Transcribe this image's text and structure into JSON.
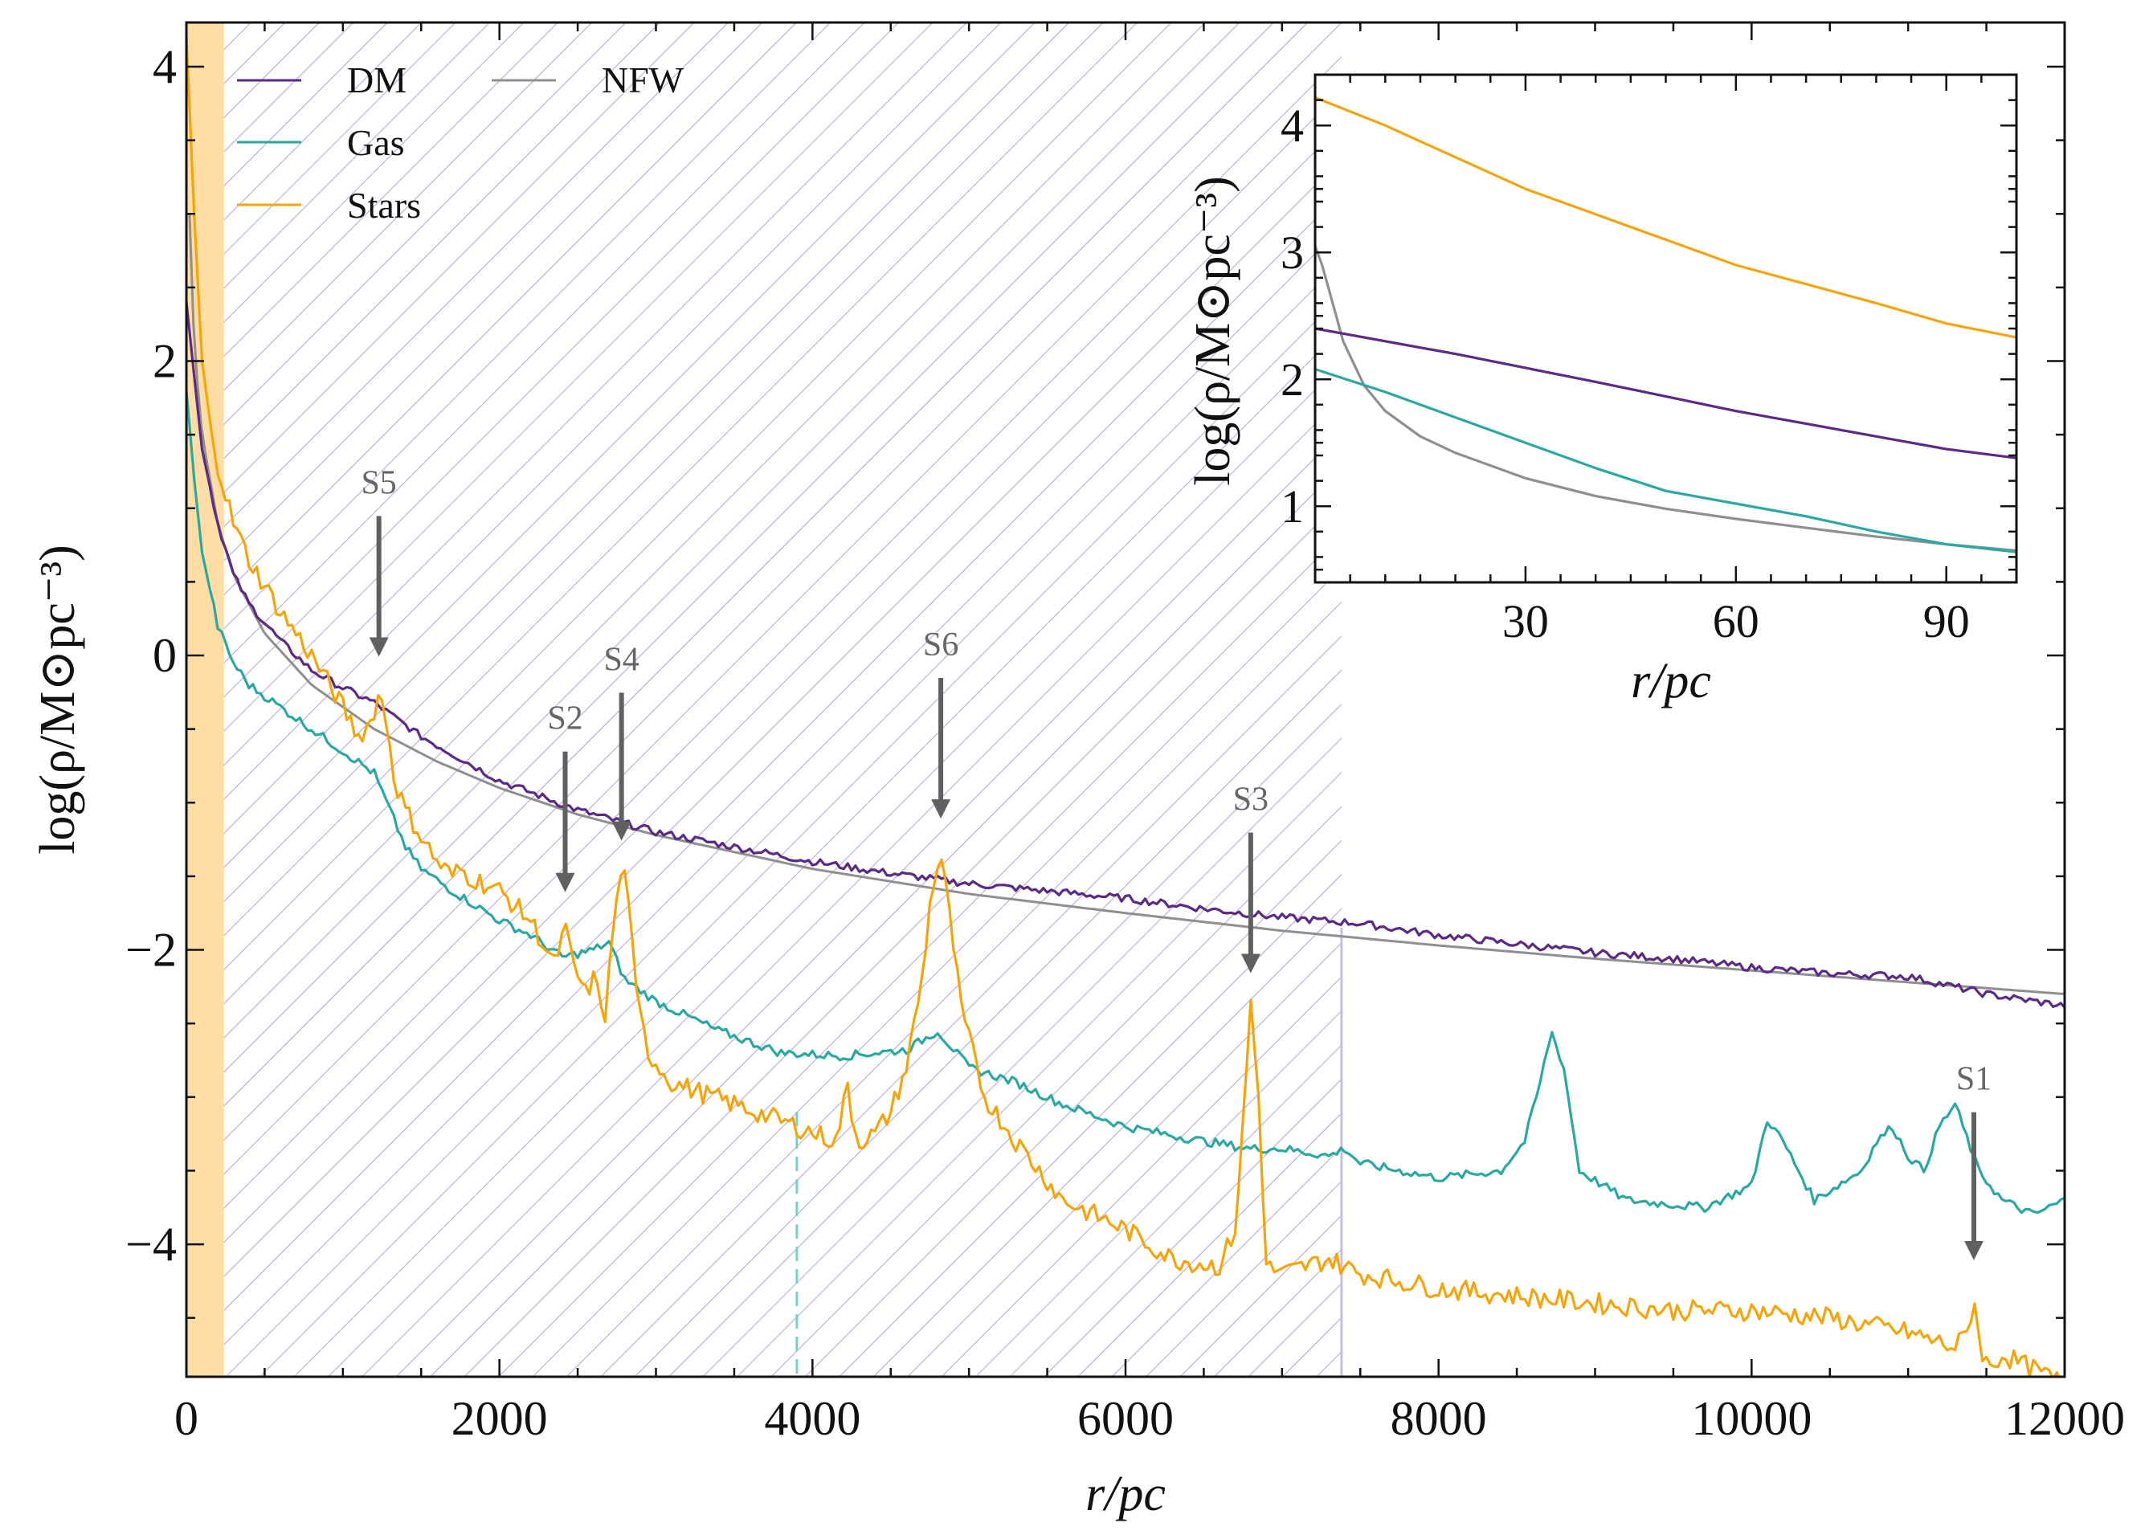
{
  "chart_data": {
    "type": "line",
    "title": "",
    "xlabel": "r/pc",
    "ylabel": "log(ρ/M⊙pc⁻³)",
    "xlim": [
      0,
      12000
    ],
    "ylim": [
      -4.9,
      4.3
    ],
    "xticks": [
      0,
      2000,
      4000,
      6000,
      8000,
      10000,
      12000
    ],
    "yticks": [
      4,
      2,
      0,
      -2,
      -4
    ],
    "ytick_labels": [
      "4",
      "2",
      "0",
      "−2",
      "−4"
    ],
    "colors": {
      "DM": "#5b2a86",
      "Gas": "#2aa9a2",
      "Stars": "#f5a50a",
      "NFW": "#8f8f8f",
      "arrow": "#606060"
    },
    "legend": {
      "placement": "top-left",
      "entries": [
        {
          "name": "DM",
          "color": "#5b2a86"
        },
        {
          "name": "Gas",
          "color": "#2aa9a2"
        },
        {
          "name": "Stars",
          "color": "#f5a50a"
        },
        {
          "name": "NFW",
          "color": "#8f8f8f"
        }
      ]
    },
    "shaded_regions": [
      {
        "x0": 0,
        "x1": 240,
        "style": "solid",
        "color": "#ffd99a"
      },
      {
        "x0": 240,
        "x1": 7380,
        "style": "hatched",
        "color": "#c9bde0"
      }
    ],
    "vertical_lines": [
      {
        "x": 3900,
        "color": "#7fcfc9",
        "style": "dashed"
      },
      {
        "x": 7380,
        "color": "#c9bde0",
        "style": "solid"
      }
    ],
    "series": [
      {
        "name": "DM",
        "x": [
          0,
          50,
          100,
          200,
          300,
          400,
          600,
          800,
          1000,
          1200,
          1500,
          2000,
          2500,
          3000,
          3500,
          4000,
          4500,
          5000,
          5500,
          6000,
          6500,
          7000,
          7500,
          8000,
          8500,
          9000,
          9500,
          10000,
          10500,
          11000,
          11500,
          12000
        ],
        "y": [
          2.4,
          1.9,
          1.4,
          0.9,
          0.55,
          0.35,
          0.1,
          -0.1,
          -0.22,
          -0.32,
          -0.55,
          -0.85,
          -1.05,
          -1.2,
          -1.3,
          -1.4,
          -1.48,
          -1.55,
          -1.6,
          -1.65,
          -1.72,
          -1.78,
          -1.82,
          -1.9,
          -1.96,
          -2.02,
          -2.06,
          -2.12,
          -2.16,
          -2.18,
          -2.3,
          -2.38
        ]
      },
      {
        "name": "Gas",
        "x": [
          0,
          50,
          100,
          200,
          300,
          400,
          600,
          800,
          1000,
          1200,
          1400,
          1500,
          1700,
          2000,
          2200,
          2400,
          2600,
          2700,
          2800,
          3000,
          3400,
          3800,
          4200,
          4600,
          4800,
          5000,
          5300,
          5600,
          6000,
          6500,
          6800,
          7000,
          7300,
          7400,
          7500,
          8000,
          8400,
          8550,
          8650,
          8720,
          8800,
          8900,
          9200,
          9700,
          10000,
          10100,
          10200,
          10400,
          10700,
          10800,
          10900,
          11000,
          11100,
          11200,
          11300,
          11450,
          11600,
          11800,
          12000
        ],
        "y": [
          1.8,
          1.2,
          0.7,
          0.2,
          -0.05,
          -0.2,
          -0.35,
          -0.5,
          -0.65,
          -0.8,
          -1.3,
          -1.45,
          -1.6,
          -1.8,
          -1.9,
          -2.05,
          -2.0,
          -1.95,
          -2.2,
          -2.35,
          -2.55,
          -2.7,
          -2.72,
          -2.68,
          -2.55,
          -2.8,
          -2.9,
          -3.05,
          -3.2,
          -3.3,
          -3.35,
          -3.35,
          -3.4,
          -3.35,
          -3.45,
          -3.55,
          -3.5,
          -3.3,
          -2.9,
          -2.55,
          -2.8,
          -3.5,
          -3.7,
          -3.75,
          -3.6,
          -3.15,
          -3.3,
          -3.7,
          -3.5,
          -3.3,
          -3.2,
          -3.4,
          -3.5,
          -3.2,
          -3.05,
          -3.5,
          -3.7,
          -3.8,
          -3.7
        ]
      },
      {
        "name": "Stars",
        "x": [
          0,
          50,
          100,
          150,
          200,
          300,
          400,
          600,
          800,
          1000,
          1100,
          1180,
          1230,
          1280,
          1330,
          1400,
          1600,
          1700,
          1750,
          1800,
          2000,
          2200,
          2350,
          2420,
          2470,
          2550,
          2600,
          2680,
          2720,
          2780,
          2820,
          2870,
          2950,
          3100,
          3500,
          3900,
          4150,
          4200,
          4230,
          4260,
          4300,
          4400,
          4500,
          4600,
          4700,
          4760,
          4820,
          4880,
          4950,
          5100,
          5300,
          5600,
          6000,
          6300,
          6600,
          6700,
          6750,
          6800,
          6850,
          6900,
          7000,
          7300,
          7500,
          8000,
          8500,
          9000,
          9500,
          10000,
          10500,
          11000,
          11300,
          11380,
          11420,
          11460,
          11520,
          11600,
          11800,
          12000
        ],
        "y": [
          4.2,
          3.0,
          2.0,
          1.6,
          1.3,
          0.9,
          0.65,
          0.3,
          0.0,
          -0.35,
          -0.55,
          -0.45,
          -0.25,
          -0.45,
          -0.85,
          -1.05,
          -1.4,
          -1.5,
          -1.45,
          -1.5,
          -1.6,
          -1.8,
          -2.1,
          -1.85,
          -2.1,
          -2.3,
          -2.2,
          -2.45,
          -1.9,
          -1.45,
          -1.55,
          -2.3,
          -2.7,
          -2.9,
          -3.05,
          -3.2,
          -3.3,
          -3.05,
          -2.9,
          -3.2,
          -3.3,
          -3.25,
          -3.1,
          -2.8,
          -2.2,
          -1.6,
          -1.35,
          -1.8,
          -2.4,
          -3.0,
          -3.3,
          -3.7,
          -3.9,
          -4.1,
          -4.15,
          -3.9,
          -3.2,
          -2.35,
          -3.0,
          -4.15,
          -4.2,
          -4.1,
          -4.2,
          -4.3,
          -4.35,
          -4.4,
          -4.45,
          -4.45,
          -4.5,
          -4.6,
          -4.7,
          -4.6,
          -4.35,
          -4.7,
          -4.85,
          -4.75,
          -4.85,
          -4.95
        ]
      },
      {
        "name": "NFW",
        "x": [
          20,
          50,
          100,
          200,
          300,
          500,
          800,
          1200,
          1600,
          2000,
          2500,
          3000,
          4000,
          5000,
          6000,
          7000,
          8000,
          9000,
          10000,
          11000,
          12000
        ],
        "y": [
          3.0,
          2.1,
          1.5,
          0.9,
          0.55,
          0.15,
          -0.2,
          -0.5,
          -0.72,
          -0.9,
          -1.08,
          -1.22,
          -1.45,
          -1.62,
          -1.75,
          -1.87,
          -1.97,
          -2.06,
          -2.14,
          -2.22,
          -2.3
        ]
      }
    ],
    "annotations": [
      {
        "label": "S5",
        "x": 1230,
        "y_tip": -0.15,
        "y_label": 1.1
      },
      {
        "label": "S2",
        "x": 2420,
        "y_tip": -1.75,
        "y_label": -0.5
      },
      {
        "label": "S4",
        "x": 2780,
        "y_tip": -1.4,
        "y_label": -0.1
      },
      {
        "label": "S6",
        "x": 4820,
        "y_tip": -1.25,
        "y_label": 0.0
      },
      {
        "label": "S3",
        "x": 6800,
        "y_tip": -2.3,
        "y_label": -1.05
      },
      {
        "label": "S1",
        "x": 11420,
        "y_tip": -4.25,
        "y_label": -2.95
      }
    ],
    "inset": {
      "xlabel": "r/pc",
      "ylabel": "log(ρ/M⊙pc⁻³)",
      "xlim": [
        0,
        100
      ],
      "ylim": [
        0.4,
        4.4
      ],
      "xticks": [
        30,
        60,
        90
      ],
      "yticks": [
        1,
        2,
        3,
        4
      ],
      "series": [
        {
          "name": "DM",
          "x": [
            0,
            20,
            40,
            60,
            80,
            90,
            100
          ],
          "y": [
            2.4,
            2.2,
            1.98,
            1.75,
            1.55,
            1.45,
            1.38
          ]
        },
        {
          "name": "Gas",
          "x": [
            0,
            10,
            20,
            30,
            40,
            50,
            60,
            70,
            80,
            90,
            100
          ],
          "y": [
            2.08,
            1.9,
            1.7,
            1.5,
            1.3,
            1.12,
            1.02,
            0.92,
            0.8,
            0.7,
            0.64
          ]
        },
        {
          "name": "Stars",
          "x": [
            0,
            10,
            20,
            30,
            40,
            50,
            60,
            70,
            80,
            90,
            100
          ],
          "y": [
            4.22,
            4.0,
            3.75,
            3.5,
            3.3,
            3.1,
            2.9,
            2.75,
            2.6,
            2.44,
            2.33
          ]
        },
        {
          "name": "NFW",
          "x": [
            0,
            1,
            2,
            4,
            7,
            10,
            15,
            20,
            30,
            40,
            50,
            60,
            70,
            80,
            90,
            100
          ],
          "y": [
            3.05,
            2.9,
            2.7,
            2.3,
            1.95,
            1.75,
            1.55,
            1.42,
            1.22,
            1.08,
            0.98,
            0.9,
            0.83,
            0.76,
            0.7,
            0.65
          ]
        }
      ]
    }
  }
}
